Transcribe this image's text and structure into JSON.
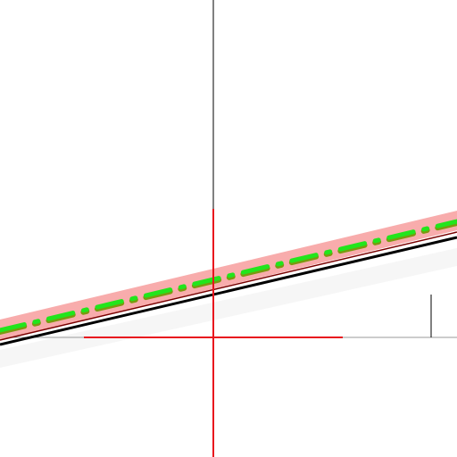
{
  "colors": {
    "background": "#ffffff",
    "axis": "#000000",
    "crosshair": "#e8141e",
    "highlight_band": "#f7a3a3",
    "dash_dot_line": "#22e51c",
    "dash_dot_dark": "#7a9a10",
    "shadow_band": "#eeeeee",
    "main_line": "#000000",
    "thin_line": "#7a0000"
  },
  "icons": {
    "crosshair": "crosshair-cursor",
    "tick": "vertical-tick-mark"
  }
}
